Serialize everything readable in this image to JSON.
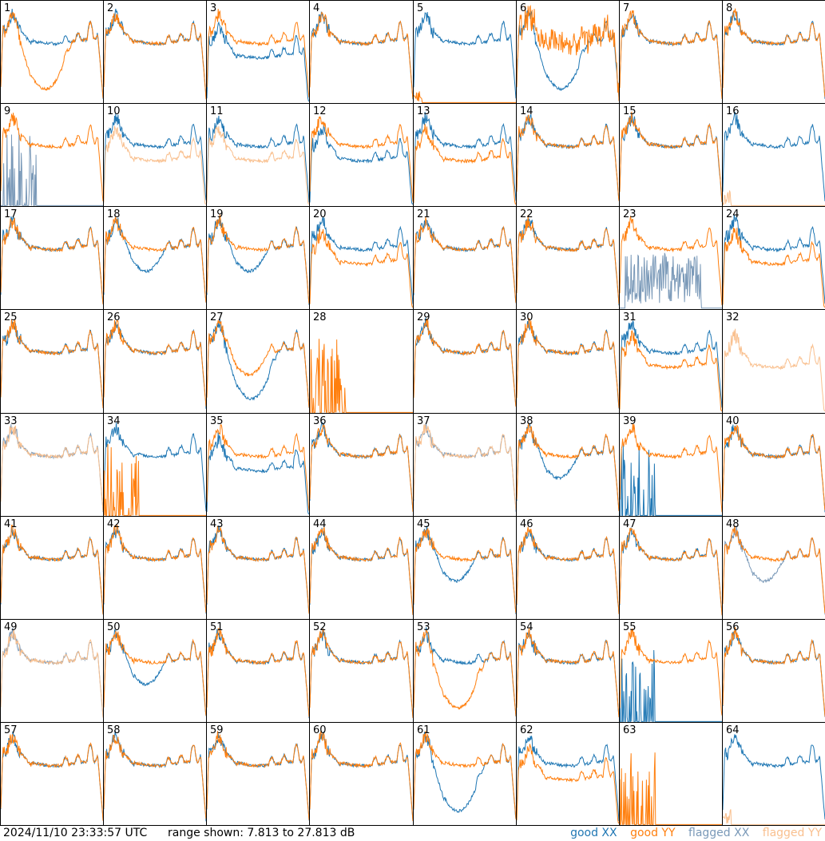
{
  "chart_data": {
    "type": "line",
    "title": "",
    "rows": 8,
    "cols": 8,
    "xlabel": "",
    "ylabel": "",
    "ylim_db": [
      7.813,
      27.813
    ],
    "series_names": [
      "good XX",
      "good YY",
      "flagged XX",
      "flagged YY"
    ],
    "colors": {
      "good_xx": "#1f77b4",
      "good_yy": "#ff7f0e",
      "flagged_xx": "#7a99b8",
      "flagged_yy": "#f9c08f"
    },
    "panels": [
      {
        "id": "1",
        "xx": "good",
        "yy": "good",
        "xxShape": "normal",
        "yyShape": "deep_sag"
      },
      {
        "id": "2",
        "xx": "good",
        "yy": "good",
        "xxShape": "normal",
        "yyShape": "normal"
      },
      {
        "id": "3",
        "xx": "good",
        "yy": "good",
        "xxShape": "lower",
        "yyShape": "normal"
      },
      {
        "id": "4",
        "xx": "good",
        "yy": "good",
        "xxShape": "normal",
        "yyShape": "normal"
      },
      {
        "id": "5",
        "xx": "good",
        "yy": "good",
        "xxShape": "normal",
        "yyShape": "flat_low"
      },
      {
        "id": "6",
        "xx": "good",
        "yy": "good",
        "xxShape": "deep_sag",
        "yyShape": "noisy"
      },
      {
        "id": "7",
        "xx": "good",
        "yy": "good",
        "xxShape": "normal",
        "yyShape": "normal"
      },
      {
        "id": "8",
        "xx": "good",
        "yy": "good",
        "xxShape": "normal",
        "yyShape": "normal"
      },
      {
        "id": "9",
        "xx": "flagged",
        "yy": "good",
        "xxShape": "spiky_low",
        "yyShape": "normal"
      },
      {
        "id": "10",
        "xx": "good",
        "yy": "flagged",
        "xxShape": "normal",
        "yyShape": "lower"
      },
      {
        "id": "11",
        "xx": "good",
        "yy": "flagged",
        "xxShape": "normal",
        "yyShape": "lower"
      },
      {
        "id": "12",
        "xx": "good",
        "yy": "good",
        "xxShape": "lower",
        "yyShape": "normal"
      },
      {
        "id": "13",
        "xx": "good",
        "yy": "good",
        "xxShape": "normal",
        "yyShape": "lower"
      },
      {
        "id": "14",
        "xx": "good",
        "yy": "good",
        "xxShape": "normal",
        "yyShape": "normal"
      },
      {
        "id": "15",
        "xx": "good",
        "yy": "good",
        "xxShape": "normal",
        "yyShape": "normal"
      },
      {
        "id": "16",
        "xx": "good",
        "yy": "flagged",
        "xxShape": "normal",
        "yyShape": "flat_low"
      },
      {
        "id": "17",
        "xx": "good",
        "yy": "good",
        "xxShape": "normal",
        "yyShape": "normal"
      },
      {
        "id": "18",
        "xx": "good",
        "yy": "good",
        "xxShape": "sag",
        "yyShape": "normal"
      },
      {
        "id": "19",
        "xx": "good",
        "yy": "good",
        "xxShape": "sag",
        "yyShape": "normal"
      },
      {
        "id": "20",
        "xx": "good",
        "yy": "good",
        "xxShape": "normal",
        "yyShape": "lower"
      },
      {
        "id": "21",
        "xx": "good",
        "yy": "good",
        "xxShape": "normal",
        "yyShape": "normal"
      },
      {
        "id": "22",
        "xx": "good",
        "yy": "good",
        "xxShape": "normal",
        "yyShape": "normal"
      },
      {
        "id": "23",
        "xx": "flagged",
        "yy": "good",
        "xxShape": "spiky_mid",
        "yyShape": "normal"
      },
      {
        "id": "24",
        "xx": "good",
        "yy": "good",
        "xxShape": "normal",
        "yyShape": "lower"
      },
      {
        "id": "25",
        "xx": "good",
        "yy": "good",
        "xxShape": "normal",
        "yyShape": "normal"
      },
      {
        "id": "26",
        "xx": "good",
        "yy": "good",
        "xxShape": "normal",
        "yyShape": "normal"
      },
      {
        "id": "27",
        "xx": "good",
        "yy": "good",
        "xxShape": "deep_sag",
        "yyShape": "sag"
      },
      {
        "id": "28",
        "xx": "good",
        "yy": "good",
        "xxShape": "none",
        "yyShape": "spiky_low"
      },
      {
        "id": "29",
        "xx": "good",
        "yy": "good",
        "xxShape": "normal",
        "yyShape": "normal"
      },
      {
        "id": "30",
        "xx": "good",
        "yy": "good",
        "xxShape": "normal",
        "yyShape": "normal"
      },
      {
        "id": "31",
        "xx": "good",
        "yy": "good",
        "xxShape": "normal",
        "yyShape": "lower"
      },
      {
        "id": "32",
        "xx": "good",
        "yy": "flagged",
        "xxShape": "none",
        "yyShape": "lower"
      },
      {
        "id": "33",
        "xx": "flagged",
        "yy": "flagged",
        "xxShape": "normal",
        "yyShape": "normal"
      },
      {
        "id": "34",
        "xx": "good",
        "yy": "good",
        "xxShape": "normal",
        "yyShape": "spiky_low"
      },
      {
        "id": "35",
        "xx": "good",
        "yy": "good",
        "xxShape": "lower",
        "yyShape": "normal"
      },
      {
        "id": "36",
        "xx": "good",
        "yy": "good",
        "xxShape": "normal",
        "yyShape": "normal"
      },
      {
        "id": "37",
        "xx": "flagged",
        "yy": "flagged",
        "xxShape": "normal",
        "yyShape": "normal"
      },
      {
        "id": "38",
        "xx": "good",
        "yy": "good",
        "xxShape": "sag",
        "yyShape": "normal"
      },
      {
        "id": "39",
        "xx": "good",
        "yy": "good",
        "xxShape": "spiky_low",
        "yyShape": "normal"
      },
      {
        "id": "40",
        "xx": "good",
        "yy": "good",
        "xxShape": "normal",
        "yyShape": "normal"
      },
      {
        "id": "41",
        "xx": "good",
        "yy": "good",
        "xxShape": "normal",
        "yyShape": "normal"
      },
      {
        "id": "42",
        "xx": "good",
        "yy": "good",
        "xxShape": "normal",
        "yyShape": "normal"
      },
      {
        "id": "43",
        "xx": "good",
        "yy": "good",
        "xxShape": "normal",
        "yyShape": "normal"
      },
      {
        "id": "44",
        "xx": "good",
        "yy": "good",
        "xxShape": "normal",
        "yyShape": "normal"
      },
      {
        "id": "45",
        "xx": "good",
        "yy": "good",
        "xxShape": "sag",
        "yyShape": "normal"
      },
      {
        "id": "46",
        "xx": "good",
        "yy": "good",
        "xxShape": "normal",
        "yyShape": "normal"
      },
      {
        "id": "47",
        "xx": "good",
        "yy": "good",
        "xxShape": "normal",
        "yyShape": "normal"
      },
      {
        "id": "48",
        "xx": "flagged",
        "yy": "good",
        "xxShape": "sag",
        "yyShape": "normal"
      },
      {
        "id": "49",
        "xx": "flagged",
        "yy": "flagged",
        "xxShape": "normal",
        "yyShape": "normal"
      },
      {
        "id": "50",
        "xx": "good",
        "yy": "good",
        "xxShape": "sag",
        "yyShape": "normal"
      },
      {
        "id": "51",
        "xx": "good",
        "yy": "good",
        "xxShape": "normal",
        "yyShape": "normal"
      },
      {
        "id": "52",
        "xx": "good",
        "yy": "good",
        "xxShape": "normal",
        "yyShape": "normal"
      },
      {
        "id": "53",
        "xx": "good",
        "yy": "good",
        "xxShape": "normal",
        "yyShape": "deep_sag"
      },
      {
        "id": "54",
        "xx": "good",
        "yy": "good",
        "xxShape": "normal",
        "yyShape": "normal"
      },
      {
        "id": "55",
        "xx": "good",
        "yy": "good",
        "xxShape": "spiky_low",
        "yyShape": "normal"
      },
      {
        "id": "56",
        "xx": "good",
        "yy": "good",
        "xxShape": "normal",
        "yyShape": "normal"
      },
      {
        "id": "57",
        "xx": "good",
        "yy": "good",
        "xxShape": "normal",
        "yyShape": "normal"
      },
      {
        "id": "58",
        "xx": "good",
        "yy": "good",
        "xxShape": "normal",
        "yyShape": "normal"
      },
      {
        "id": "59",
        "xx": "good",
        "yy": "good",
        "xxShape": "normal",
        "yyShape": "normal"
      },
      {
        "id": "60",
        "xx": "good",
        "yy": "good",
        "xxShape": "normal",
        "yyShape": "normal"
      },
      {
        "id": "61",
        "xx": "good",
        "yy": "good",
        "xxShape": "deep_sag",
        "yyShape": "normal"
      },
      {
        "id": "62",
        "xx": "good",
        "yy": "good",
        "xxShape": "normal",
        "yyShape": "lower"
      },
      {
        "id": "63",
        "xx": "good",
        "yy": "good",
        "xxShape": "none",
        "yyShape": "spiky_low"
      },
      {
        "id": "64",
        "xx": "good",
        "yy": "flagged",
        "xxShape": "normal",
        "yyShape": "flat_low"
      }
    ]
  },
  "footer": {
    "timestamp": "2024/11/10 23:33:57 UTC",
    "range": "range shown: 7.813 to 27.813 dB",
    "legend": {
      "good_xx": "good XX",
      "good_yy": "good YY",
      "flagged_xx": "flagged XX",
      "flagged_yy": "flagged YY"
    }
  }
}
